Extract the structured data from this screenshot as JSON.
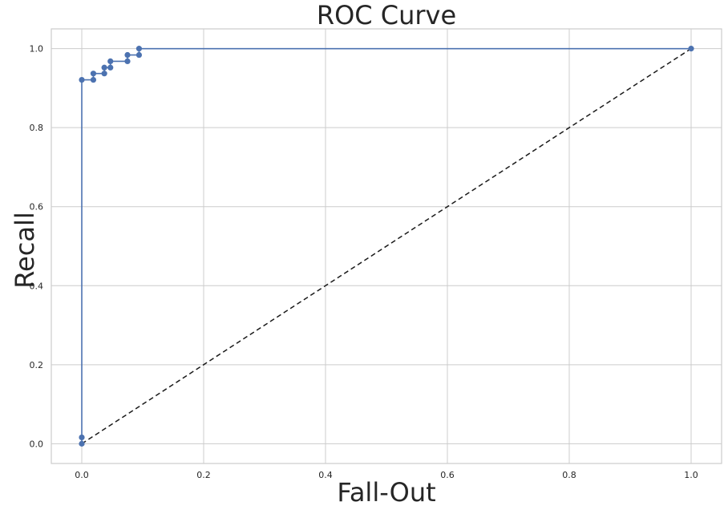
{
  "chart_data": {
    "type": "line",
    "title": "ROC Curve",
    "xlabel": "Fall-Out",
    "ylabel": "Recall",
    "xlim": [
      -0.05,
      1.05
    ],
    "ylim": [
      -0.05,
      1.05
    ],
    "xticks": [
      0.0,
      0.2,
      0.4,
      0.6,
      0.8,
      1.0
    ],
    "yticks": [
      0.0,
      0.2,
      0.4,
      0.6,
      0.8,
      1.0
    ],
    "xtick_labels": [
      "0.0",
      "0.2",
      "0.4",
      "0.6",
      "0.8",
      "1.0"
    ],
    "ytick_labels": [
      "0.0",
      "0.2",
      "0.4",
      "0.6",
      "0.8",
      "1.0"
    ],
    "grid": true,
    "legend": "none",
    "series": [
      {
        "style": "solid line with circle markers",
        "color": "#4c72b0",
        "x": [
          0.0,
          0.0,
          0.0,
          0.019,
          0.019,
          0.037,
          0.037,
          0.047,
          0.047,
          0.075,
          0.075,
          0.094,
          0.094,
          1.0
        ],
        "y": [
          0.0,
          0.016,
          0.921,
          0.921,
          0.937,
          0.937,
          0.952,
          0.952,
          0.968,
          0.968,
          0.984,
          0.984,
          1.0,
          1.0
        ]
      },
      {
        "style": "dashed line",
        "color": "#1a1a1a",
        "x": [
          0.0,
          1.0
        ],
        "y": [
          0.0,
          1.0
        ]
      }
    ]
  }
}
